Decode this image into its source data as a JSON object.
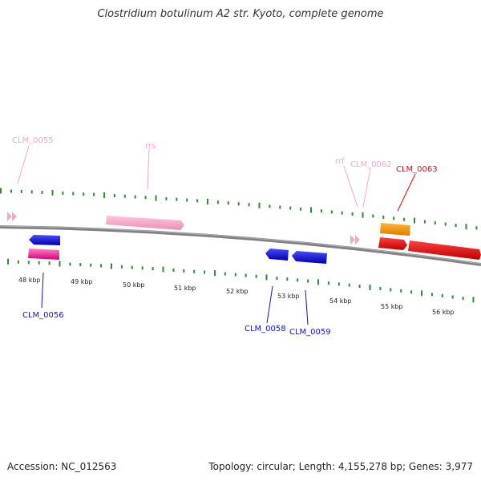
{
  "title": "Clostridium botulinum A2 str. Kyoto, complete genome",
  "footer": {
    "accession": "Accession: NC_012563",
    "summary": "Topology: circular; Length: 4,155,278 bp; Genes: 3,977"
  },
  "axis": {
    "unit": "kbp",
    "tick_labels": [
      "48 kbp",
      "49 kbp",
      "50 kbp",
      "51 kbp",
      "52 kbp",
      "53 kbp",
      "54 kbp",
      "55 kbp",
      "56 kbp"
    ]
  },
  "colors": {
    "backbone": "#808080",
    "tick": "#2e8b2e",
    "rna": "#f4a6c8",
    "pink_gene": "#ff1493",
    "blue_gene": "#1010e0",
    "orange_gene": "#ff9900",
    "red_gene": "#ee0000"
  },
  "gene_labels": [
    {
      "id": "CLM_0055",
      "text": "CLM_0055",
      "color": "#f4a6c8"
    },
    {
      "id": "rrs",
      "text": "rrs",
      "color": "#f4a6c8"
    },
    {
      "id": "rrf",
      "text": "rrf",
      "color": "#f4a6c8"
    },
    {
      "id": "CLM_0062",
      "text": "CLM_0062",
      "color": "#f4a6c8"
    },
    {
      "id": "CLM_0063",
      "text": "CLM_0063",
      "color": "#ee0000"
    },
    {
      "id": "CLM_0056",
      "text": "CLM_0056",
      "color": "#1010e0"
    },
    {
      "id": "CLM_0058",
      "text": "CLM_0058",
      "color": "#1010e0"
    },
    {
      "id": "CLM_0059",
      "text": "CLM_0059",
      "color": "#1010e0"
    }
  ]
}
